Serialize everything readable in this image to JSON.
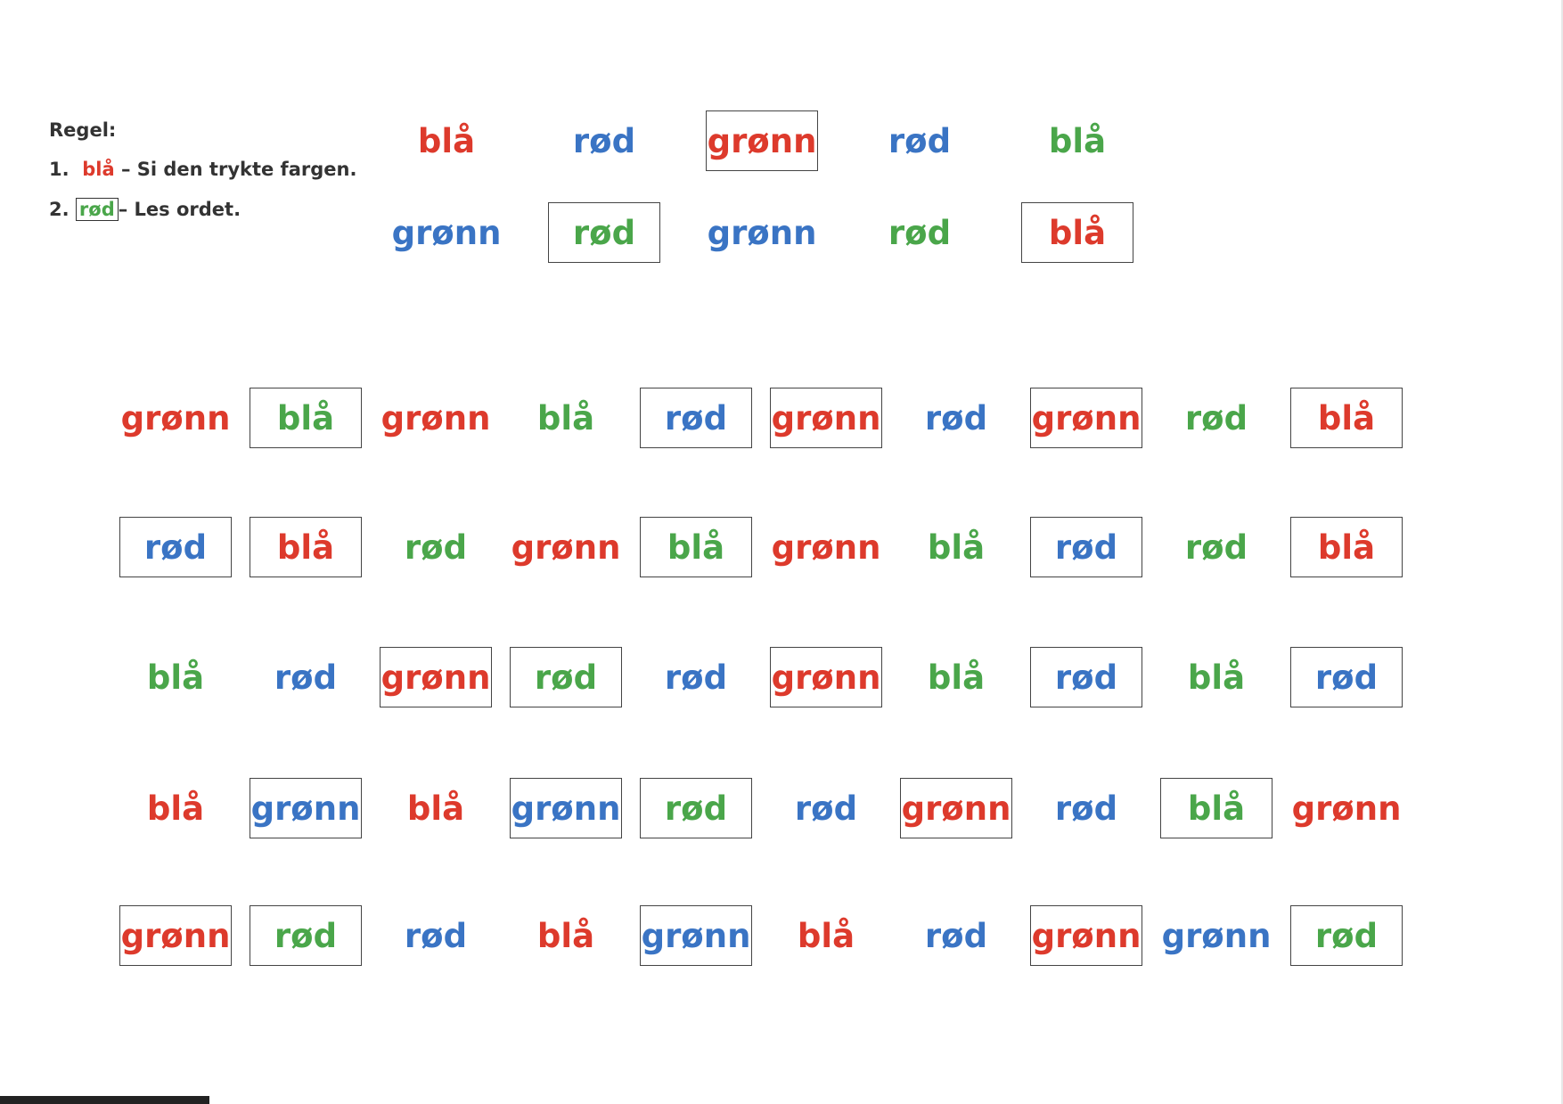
{
  "rules": {
    "title": "Regel:",
    "rule1": {
      "num": "1.",
      "word": "blå",
      "text": "– Si den trykte fargen."
    },
    "rule2": {
      "num": "2.",
      "word": "rød",
      "text": "– Les ordet."
    }
  },
  "colors": {
    "red": "#dd3a2c",
    "blue": "#3a74c4",
    "green": "#4aa64a"
  },
  "practice_rows": [
    [
      {
        "word": "blå",
        "color": "red",
        "boxed": false
      },
      {
        "word": "rød",
        "color": "blue",
        "boxed": false
      },
      {
        "word": "grønn",
        "color": "red",
        "boxed": true
      },
      {
        "word": "rød",
        "color": "blue",
        "boxed": false
      },
      {
        "word": "blå",
        "color": "green",
        "boxed": false
      }
    ],
    [
      {
        "word": "grønn",
        "color": "blue",
        "boxed": false
      },
      {
        "word": "rød",
        "color": "green",
        "boxed": true
      },
      {
        "word": "grønn",
        "color": "blue",
        "boxed": false
      },
      {
        "word": "rød",
        "color": "green",
        "boxed": false
      },
      {
        "word": "blå",
        "color": "red",
        "boxed": true
      }
    ]
  ],
  "test_rows": [
    [
      {
        "word": "grønn",
        "color": "red",
        "boxed": false
      },
      {
        "word": "blå",
        "color": "green",
        "boxed": true
      },
      {
        "word": "grønn",
        "color": "red",
        "boxed": false
      },
      {
        "word": "blå",
        "color": "green",
        "boxed": false
      },
      {
        "word": "rød",
        "color": "blue",
        "boxed": true
      },
      {
        "word": "grønn",
        "color": "red",
        "boxed": true
      },
      {
        "word": "rød",
        "color": "blue",
        "boxed": false
      },
      {
        "word": "grønn",
        "color": "red",
        "boxed": true
      },
      {
        "word": "rød",
        "color": "green",
        "boxed": false
      },
      {
        "word": "blå",
        "color": "red",
        "boxed": true
      }
    ],
    [
      {
        "word": "rød",
        "color": "blue",
        "boxed": true
      },
      {
        "word": "blå",
        "color": "red",
        "boxed": true
      },
      {
        "word": "rød",
        "color": "green",
        "boxed": false
      },
      {
        "word": "grønn",
        "color": "red",
        "boxed": false
      },
      {
        "word": "blå",
        "color": "green",
        "boxed": true
      },
      {
        "word": "grønn",
        "color": "red",
        "boxed": false
      },
      {
        "word": "blå",
        "color": "green",
        "boxed": false
      },
      {
        "word": "rød",
        "color": "blue",
        "boxed": true
      },
      {
        "word": "rød",
        "color": "green",
        "boxed": false
      },
      {
        "word": "blå",
        "color": "red",
        "boxed": true
      }
    ],
    [
      {
        "word": "blå",
        "color": "green",
        "boxed": false
      },
      {
        "word": "rød",
        "color": "blue",
        "boxed": false
      },
      {
        "word": "grønn",
        "color": "red",
        "boxed": true
      },
      {
        "word": "rød",
        "color": "green",
        "boxed": true
      },
      {
        "word": "rød",
        "color": "blue",
        "boxed": false
      },
      {
        "word": "grønn",
        "color": "red",
        "boxed": true
      },
      {
        "word": "blå",
        "color": "green",
        "boxed": false
      },
      {
        "word": "rød",
        "color": "blue",
        "boxed": true
      },
      {
        "word": "blå",
        "color": "green",
        "boxed": false
      },
      {
        "word": "rød",
        "color": "blue",
        "boxed": true
      }
    ],
    [
      {
        "word": "blå",
        "color": "red",
        "boxed": false
      },
      {
        "word": "grønn",
        "color": "blue",
        "boxed": true
      },
      {
        "word": "blå",
        "color": "red",
        "boxed": false
      },
      {
        "word": "grønn",
        "color": "blue",
        "boxed": true
      },
      {
        "word": "rød",
        "color": "green",
        "boxed": true
      },
      {
        "word": "rød",
        "color": "blue",
        "boxed": false
      },
      {
        "word": "grønn",
        "color": "red",
        "boxed": true
      },
      {
        "word": "rød",
        "color": "blue",
        "boxed": false
      },
      {
        "word": "blå",
        "color": "green",
        "boxed": true
      },
      {
        "word": "grønn",
        "color": "red",
        "boxed": false
      }
    ],
    [
      {
        "word": "grønn",
        "color": "red",
        "boxed": true
      },
      {
        "word": "rød",
        "color": "green",
        "boxed": true
      },
      {
        "word": "rød",
        "color": "blue",
        "boxed": false
      },
      {
        "word": "blå",
        "color": "red",
        "boxed": false
      },
      {
        "word": "grønn",
        "color": "blue",
        "boxed": true
      },
      {
        "word": "blå",
        "color": "red",
        "boxed": false
      },
      {
        "word": "rød",
        "color": "blue",
        "boxed": false
      },
      {
        "word": "grønn",
        "color": "red",
        "boxed": true
      },
      {
        "word": "grønn",
        "color": "blue",
        "boxed": false
      },
      {
        "word": "rød",
        "color": "green",
        "boxed": true
      }
    ]
  ]
}
